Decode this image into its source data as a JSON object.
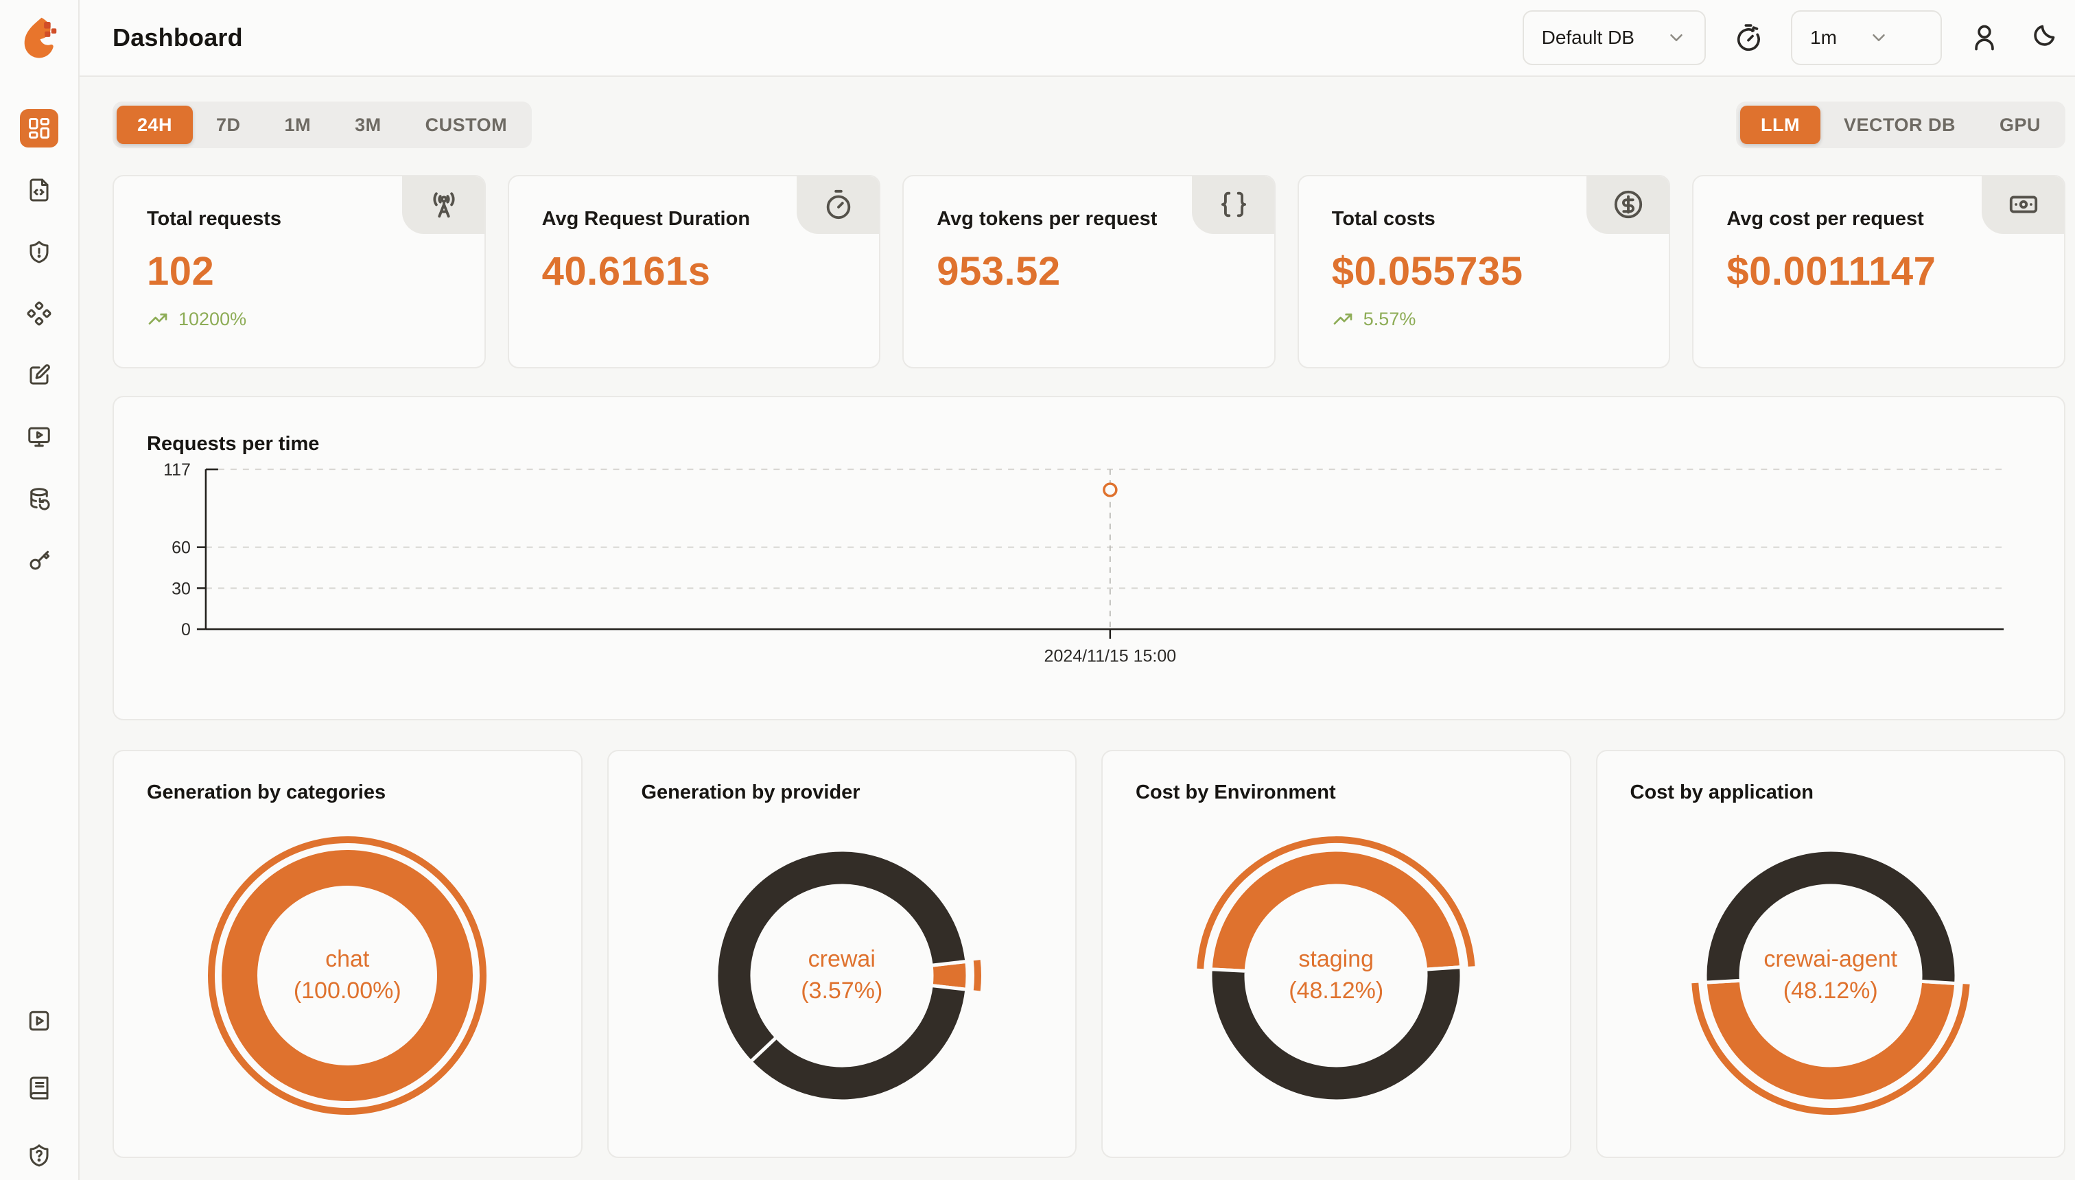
{
  "topbar": {
    "title": "Dashboard",
    "db_select_value": "Default DB",
    "interval_select_value": "1m",
    "icons": [
      "timer-reset",
      "user",
      "moon"
    ]
  },
  "sidebar": {
    "nav_icons": [
      "layout-dashboard",
      "file-code",
      "shield-alert",
      "diamonds",
      "square-pen",
      "monitor-play",
      "database-backup",
      "key"
    ],
    "footer_icons": [
      "square-play",
      "book-text",
      "shield-question"
    ]
  },
  "filters": {
    "time_ranges": [
      "24H",
      "7D",
      "1M",
      "3M",
      "CUSTOM"
    ],
    "active_time_range": "24H",
    "modes": [
      "LLM",
      "VECTOR DB",
      "GPU"
    ],
    "active_mode": "LLM"
  },
  "metric_cards": [
    {
      "title": "Total requests",
      "value": "102",
      "trend": "10200%",
      "icon": "radio-tower"
    },
    {
      "title": "Avg Request Duration",
      "value": "40.6161s",
      "trend": null,
      "icon": "stopwatch"
    },
    {
      "title": "Avg tokens per request",
      "value": "953.52",
      "trend": null,
      "icon": "braces"
    },
    {
      "title": "Total costs",
      "value": "$0.055735",
      "trend": "5.57%",
      "icon": "circle-dollar-sign"
    },
    {
      "title": "Avg cost per request",
      "value": "$0.0011147",
      "trend": null,
      "icon": "banknote"
    }
  ],
  "colors": {
    "accent": "#df722e",
    "positive": "#8dac56",
    "donut_dark": "#332d27",
    "card_bg": "#fbfbfa"
  },
  "chart_data": [
    {
      "type": "line",
      "title": "Requests per time",
      "y_ticks": [
        0,
        30,
        60,
        117
      ],
      "y_max": 117,
      "grid": "horizontal-dashed",
      "legend": "none",
      "series_color": "#df722e",
      "marker": "hollow-circle",
      "points": [
        {
          "x_label": "2024/11/15 15:00",
          "x_fraction": 0.503,
          "value": 102
        }
      ]
    },
    {
      "type": "donut",
      "title": "Generation by categories",
      "center_label": {
        "name": "chat",
        "pct": "(100.00%)"
      },
      "start_fraction": 0,
      "segments": [
        {
          "name": "chat",
          "pct": 100,
          "color": "#df722e",
          "selected": true
        }
      ]
    },
    {
      "type": "donut",
      "title": "Generation by provider",
      "center_label": {
        "name": "crewai",
        "pct": "(3.57%)"
      },
      "start_fraction": 0.232,
      "segments": [
        {
          "name": "crewai",
          "pct": 3.57,
          "color": "#df722e",
          "selected": true
        },
        {
          "name": "other",
          "pct": 36.2,
          "color": "#332d27",
          "selected": false
        },
        {
          "name": "other",
          "pct": 60.23,
          "color": "#332d27",
          "selected": false
        }
      ]
    },
    {
      "type": "donut",
      "title": "Cost by Environment",
      "center_label": {
        "name": "staging",
        "pct": "(48.12%)"
      },
      "start_fraction": 0.758,
      "segments": [
        {
          "name": "staging",
          "pct": 48.12,
          "color": "#df722e",
          "selected": true
        },
        {
          "name": "other",
          "pct": 51.88,
          "color": "#332d27",
          "selected": false
        }
      ]
    },
    {
      "type": "donut",
      "title": "Cost by application",
      "center_label": {
        "name": "crewai-agent",
        "pct": "(48.12%)"
      },
      "start_fraction": 0.26,
      "segments": [
        {
          "name": "crewai-agent",
          "pct": 48.12,
          "color": "#df722e",
          "selected": true
        },
        {
          "name": "other",
          "pct": 51.88,
          "color": "#332d27",
          "selected": false
        }
      ]
    }
  ]
}
